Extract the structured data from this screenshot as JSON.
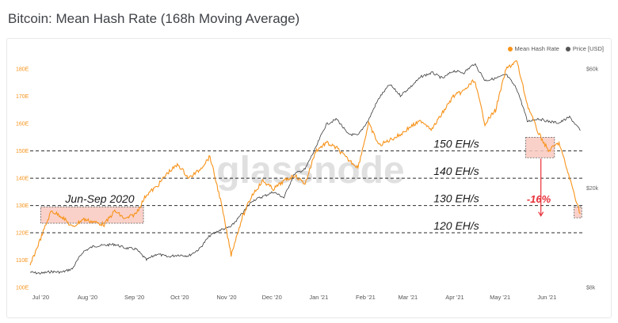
{
  "title": "Bitcoin: Mean Hash Rate (168h Moving Average)",
  "watermark": "glassnode",
  "colors": {
    "hash": "#f7931a",
    "price": "#3a3a3a",
    "box_fill": "#f9c9c0",
    "box_stroke": "#5a5a5a",
    "arrow": "#e8313a",
    "dashed": "#2b2b2b"
  },
  "chart_data": {
    "type": "line",
    "title": "Bitcoin: Mean Hash Rate (168h Moving Average)",
    "legend": {
      "position": "top-right",
      "entries": [
        "Mean Hash Rate",
        "Price [USD]"
      ]
    },
    "x_ticks": [
      "Jul '20",
      "Aug '20",
      "Sep '20",
      "Oct '20",
      "Nov '20",
      "Dec '20",
      "Jan '21",
      "Feb '21",
      "Mar '21",
      "Apr '21",
      "May '21",
      "Jun '21"
    ],
    "x_start": "Jul '20",
    "y_left_ticks": [
      "100E",
      "110E",
      "120E",
      "130E",
      "140E",
      "150E",
      "160E",
      "170E",
      "180E"
    ],
    "y_left_range": [
      100,
      185
    ],
    "y_right_ticks": [
      "$8k",
      "$20k",
      "$60k"
    ],
    "y_right_scale": "log",
    "reference_lines": [
      {
        "value": 150,
        "label": "150 EH/s"
      },
      {
        "value": 140,
        "label": "140 EH/s"
      },
      {
        "value": 130,
        "label": "130 EH/s"
      },
      {
        "value": 120,
        "label": "120 EH/s"
      }
    ],
    "annotations": [
      {
        "text": "Jun-Sep 2020"
      },
      {
        "text": "-16%"
      }
    ],
    "series": [
      {
        "name": "Mean Hash Rate",
        "axis": "left",
        "x": [
          "2020-06-24",
          "2020-07-01",
          "2020-07-08",
          "2020-07-15",
          "2020-07-22",
          "2020-07-29",
          "2020-08-05",
          "2020-08-12",
          "2020-08-19",
          "2020-08-26",
          "2020-09-02",
          "2020-09-09",
          "2020-09-16",
          "2020-09-23",
          "2020-09-30",
          "2020-10-07",
          "2020-10-14",
          "2020-10-21",
          "2020-10-28",
          "2020-11-04",
          "2020-11-11",
          "2020-11-18",
          "2020-11-25",
          "2020-12-02",
          "2020-12-09",
          "2020-12-16",
          "2020-12-23",
          "2020-12-30",
          "2021-01-06",
          "2021-01-13",
          "2021-01-20",
          "2021-01-27",
          "2021-02-03",
          "2021-02-10",
          "2021-02-17",
          "2021-02-24",
          "2021-03-03",
          "2021-03-10",
          "2021-03-17",
          "2021-03-24",
          "2021-03-31",
          "2021-04-07",
          "2021-04-14",
          "2021-04-21",
          "2021-04-28",
          "2021-05-05",
          "2021-05-12",
          "2021-05-19",
          "2021-05-26",
          "2021-06-02",
          "2021-06-09",
          "2021-06-16",
          "2021-06-23"
        ],
        "y": [
          108,
          118,
          128,
          126,
          122,
          125,
          124,
          123,
          128,
          125,
          127,
          134,
          137,
          142,
          145,
          140,
          143,
          148,
          132,
          112,
          125,
          134,
          139,
          136,
          139,
          141,
          138,
          150,
          153,
          151,
          147,
          144,
          160,
          152,
          154,
          156,
          159,
          161,
          158,
          164,
          170,
          172,
          176,
          160,
          165,
          180,
          183,
          167,
          157,
          150,
          153,
          140,
          127
        ]
      },
      {
        "name": "Price [USD]",
        "axis": "right",
        "x": [
          "2020-06-24",
          "2020-07-01",
          "2020-07-08",
          "2020-07-15",
          "2020-07-22",
          "2020-07-29",
          "2020-08-05",
          "2020-08-12",
          "2020-08-19",
          "2020-08-26",
          "2020-09-02",
          "2020-09-09",
          "2020-09-16",
          "2020-09-23",
          "2020-09-30",
          "2020-10-07",
          "2020-10-14",
          "2020-10-21",
          "2020-10-28",
          "2020-11-04",
          "2020-11-11",
          "2020-11-18",
          "2020-11-25",
          "2020-12-02",
          "2020-12-09",
          "2020-12-16",
          "2020-12-23",
          "2020-12-30",
          "2021-01-06",
          "2021-01-13",
          "2021-01-20",
          "2021-01-27",
          "2021-02-03",
          "2021-02-10",
          "2021-02-17",
          "2021-02-24",
          "2021-03-03",
          "2021-03-10",
          "2021-03-17",
          "2021-03-24",
          "2021-03-31",
          "2021-04-07",
          "2021-04-14",
          "2021-04-21",
          "2021-04-28",
          "2021-05-05",
          "2021-05-12",
          "2021-05-19",
          "2021-05-26",
          "2021-06-02",
          "2021-06-09",
          "2021-06-16",
          "2021-06-23"
        ],
        "y": [
          9200,
          9100,
          9250,
          9200,
          9500,
          11100,
          11700,
          11800,
          11900,
          11500,
          11400,
          10300,
          10900,
          10600,
          10800,
          10700,
          11400,
          12900,
          13600,
          14000,
          15700,
          17800,
          18500,
          19300,
          18300,
          22800,
          23800,
          28900,
          36000,
          37800,
          33000,
          32500,
          37500,
          46000,
          52000,
          47000,
          51000,
          56000,
          58000,
          55000,
          59000,
          58000,
          63000,
          54000,
          55000,
          57000,
          50000,
          37000,
          38000,
          37000,
          36500,
          38500,
          34000
        ]
      }
    ]
  }
}
